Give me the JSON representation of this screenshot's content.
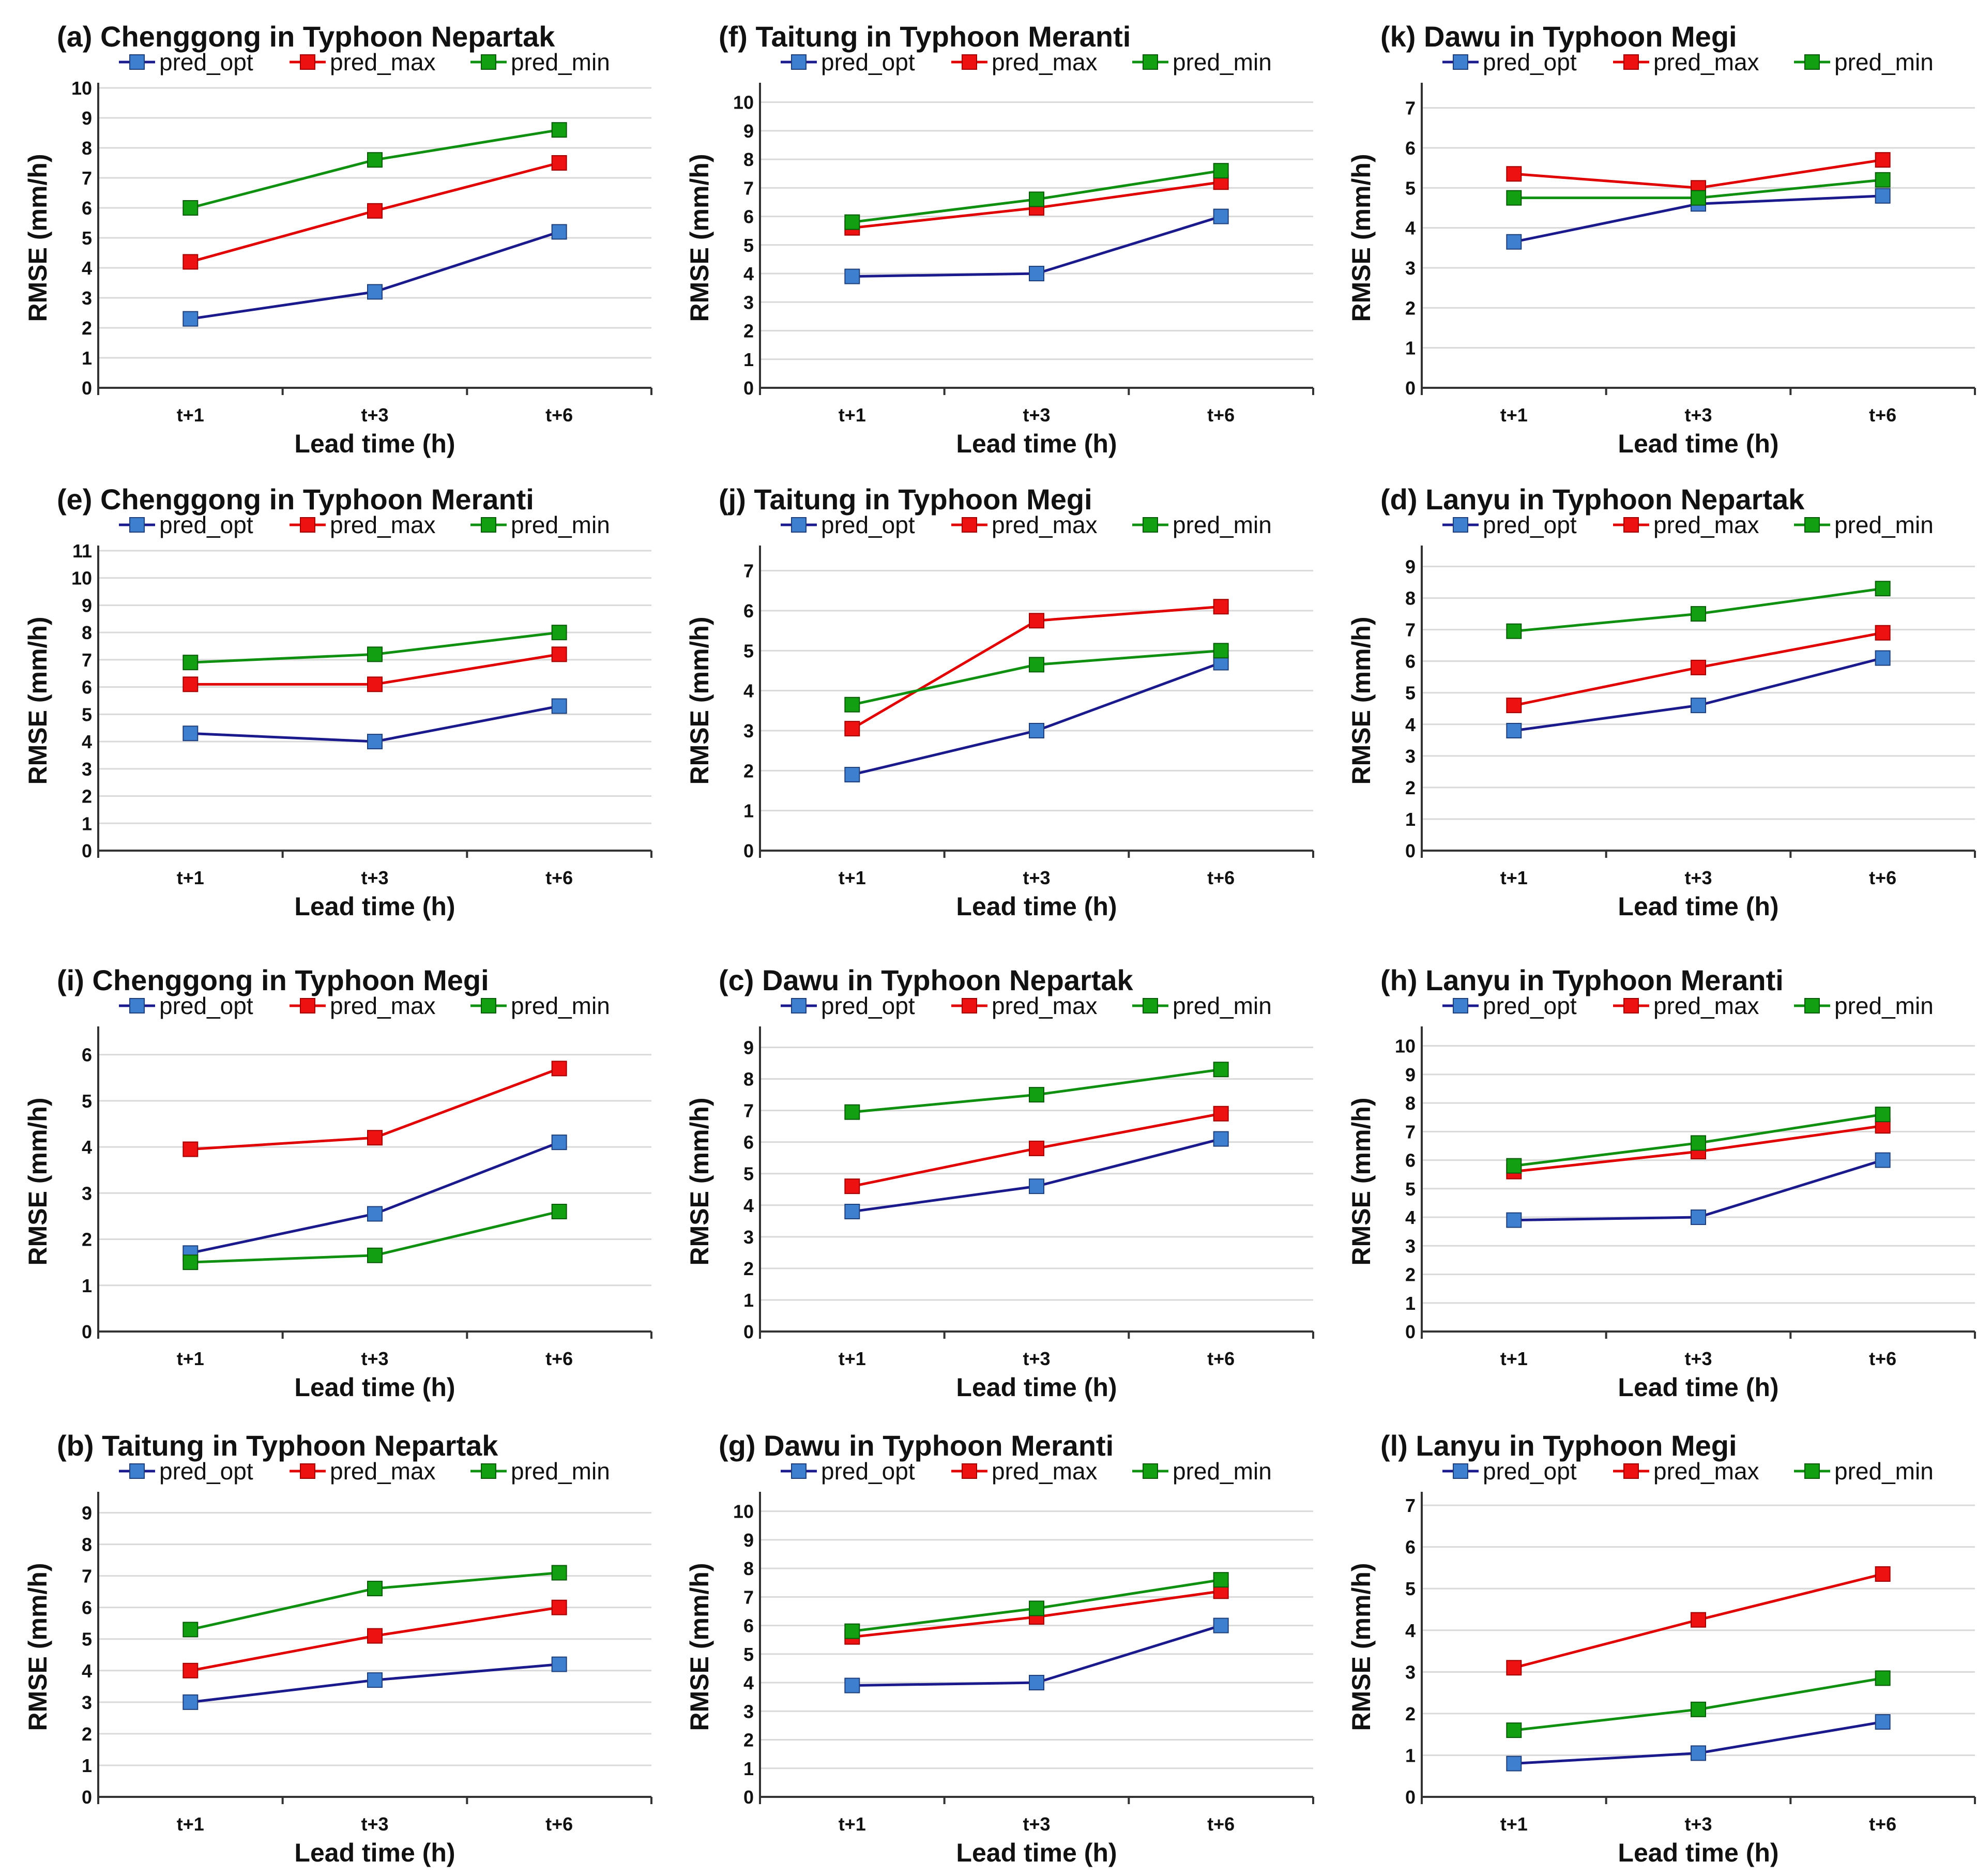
{
  "series_meta": [
    {
      "name": "pred_opt",
      "line_color": "#1a1a8c",
      "marker_color": "#3f7fd0",
      "marker_stroke": "#1f3f7a"
    },
    {
      "name": "pred_max",
      "line_color": "#e00000",
      "marker_color": "#ee1111",
      "marker_stroke": "#a00000"
    },
    {
      "name": "pred_min",
      "line_color": "#109010",
      "marker_color": "#12a012",
      "marker_stroke": "#0a5a0a"
    }
  ],
  "chart_data": [
    {
      "id": "a",
      "type": "line",
      "title": "(a) Chenggong in Typhoon Nepartak",
      "xlabel": "Lead time (h)",
      "ylabel": "RMSE (mm/h)",
      "categories": [
        "t+1",
        "t+3",
        "t+6"
      ],
      "ylim": [
        0,
        10
      ],
      "yticks": [
        0,
        1,
        2,
        3,
        4,
        5,
        6,
        7,
        8,
        9,
        10
      ],
      "legend": "top",
      "series": [
        {
          "name": "pred_opt",
          "values": [
            2.3,
            3.2,
            5.2
          ]
        },
        {
          "name": "pred_max",
          "values": [
            4.2,
            5.9,
            7.5
          ]
        },
        {
          "name": "pred_min",
          "values": [
            6.0,
            7.6,
            8.6
          ]
        }
      ]
    },
    {
      "id": "e",
      "type": "line",
      "title": "(e) Chenggong in Typhoon Meranti",
      "xlabel": "Lead time (h)",
      "ylabel": "RMSE (mm/h)",
      "categories": [
        "t+1",
        "t+3",
        "t+6"
      ],
      "ylim": [
        0,
        11
      ],
      "yticks": [
        0,
        1,
        2,
        3,
        4,
        5,
        6,
        7,
        8,
        9,
        10,
        11
      ],
      "legend": "top",
      "series": [
        {
          "name": "pred_opt",
          "values": [
            4.3,
            4.0,
            5.3
          ]
        },
        {
          "name": "pred_max",
          "values": [
            6.1,
            6.1,
            7.2
          ]
        },
        {
          "name": "pred_min",
          "values": [
            6.9,
            7.2,
            8.0
          ]
        }
      ]
    },
    {
      "id": "i",
      "type": "line",
      "title": "(i) Chenggong in Typhoon Megi",
      "xlabel": "Lead time (h)",
      "ylabel": "RMSE (mm/h)",
      "categories": [
        "t+1",
        "t+3",
        "t+6"
      ],
      "ylim": [
        0,
        6.5
      ],
      "yticks": [
        0,
        1,
        2,
        3,
        4,
        5,
        6
      ],
      "legend": "top",
      "series": [
        {
          "name": "pred_opt",
          "values": [
            1.7,
            2.55,
            4.1
          ]
        },
        {
          "name": "pred_max",
          "values": [
            3.95,
            4.2,
            5.7
          ]
        },
        {
          "name": "pred_min",
          "values": [
            1.5,
            1.65,
            2.6
          ]
        }
      ]
    },
    {
      "id": "b",
      "type": "line",
      "title": "(b) Taitung in Typhoon Nepartak",
      "xlabel": "Lead time (h)",
      "ylabel": "RMSE (mm/h)",
      "categories": [
        "t+1",
        "t+3",
        "t+6"
      ],
      "ylim": [
        0,
        9.5
      ],
      "yticks": [
        0,
        1,
        2,
        3,
        4,
        5,
        6,
        7,
        8,
        9
      ],
      "legend": "top",
      "series": [
        {
          "name": "pred_opt",
          "values": [
            3.0,
            3.7,
            4.2
          ]
        },
        {
          "name": "pred_max",
          "values": [
            4.0,
            5.1,
            6.0
          ]
        },
        {
          "name": "pred_min",
          "values": [
            5.3,
            6.6,
            7.1
          ]
        }
      ]
    },
    {
      "id": "f",
      "type": "line",
      "title": "(f) Taitung in Typhoon Meranti",
      "xlabel": "Lead time (h)",
      "ylabel": "RMSE (mm/h)",
      "categories": [
        "t+1",
        "t+3",
        "t+6"
      ],
      "ylim": [
        0,
        10.5
      ],
      "yticks": [
        0,
        1,
        2,
        3,
        4,
        5,
        6,
        7,
        8,
        9,
        10
      ],
      "legend": "top",
      "series": [
        {
          "name": "pred_opt",
          "values": [
            3.9,
            4.0,
            6.0
          ]
        },
        {
          "name": "pred_max",
          "values": [
            5.6,
            6.3,
            7.2
          ]
        },
        {
          "name": "pred_min",
          "values": [
            5.8,
            6.6,
            7.6
          ]
        }
      ]
    },
    {
      "id": "j",
      "type": "line",
      "title": "(j) Taitung in Typhoon Megi",
      "xlabel": "Lead time (h)",
      "ylabel": "RMSE (mm/h)",
      "categories": [
        "t+1",
        "t+3",
        "t+6"
      ],
      "ylim": [
        0,
        7.5
      ],
      "yticks": [
        0,
        1,
        2,
        3,
        4,
        5,
        6,
        7
      ],
      "legend": "top",
      "series": [
        {
          "name": "pred_opt",
          "values": [
            1.9,
            3.0,
            4.7
          ]
        },
        {
          "name": "pred_max",
          "values": [
            3.05,
            5.75,
            6.1
          ]
        },
        {
          "name": "pred_min",
          "values": [
            3.65,
            4.65,
            5.0
          ]
        }
      ]
    },
    {
      "id": "c",
      "type": "line",
      "title": "(c) Dawu in Typhoon Nepartak",
      "xlabel": "Lead time (h)",
      "ylabel": "RMSE (mm/h)",
      "categories": [
        "t+1",
        "t+3",
        "t+6"
      ],
      "ylim": [
        0,
        9.5
      ],
      "yticks": [
        0,
        1,
        2,
        3,
        4,
        5,
        6,
        7,
        8,
        9
      ],
      "legend": "top",
      "series": [
        {
          "name": "pred_opt",
          "values": [
            3.8,
            4.6,
            6.1
          ]
        },
        {
          "name": "pred_max",
          "values": [
            4.6,
            5.8,
            6.9
          ]
        },
        {
          "name": "pred_min",
          "values": [
            6.95,
            7.5,
            8.3
          ]
        }
      ]
    },
    {
      "id": "g",
      "type": "line",
      "title": "(g) Dawu in Typhoon Meranti",
      "xlabel": "Lead time (h)",
      "ylabel": "RMSE (mm/h)",
      "categories": [
        "t+1",
        "t+3",
        "t+6"
      ],
      "ylim": [
        0,
        10.5
      ],
      "yticks": [
        0,
        1,
        2,
        3,
        4,
        5,
        6,
        7,
        8,
        9,
        10
      ],
      "legend": "top",
      "series": [
        {
          "name": "pred_opt",
          "values": [
            3.9,
            4.0,
            6.0
          ]
        },
        {
          "name": "pred_max",
          "values": [
            5.6,
            6.3,
            7.2
          ]
        },
        {
          "name": "pred_min",
          "values": [
            5.8,
            6.6,
            7.6
          ]
        }
      ]
    },
    {
      "id": "k",
      "type": "line",
      "title": "(k) Dawu in Typhoon Megi",
      "xlabel": "Lead time (h)",
      "ylabel": "RMSE (mm/h)",
      "categories": [
        "t+1",
        "t+3",
        "t+6"
      ],
      "ylim": [
        0,
        7.5
      ],
      "yticks": [
        0,
        1,
        2,
        3,
        4,
        5,
        6,
        7
      ],
      "legend": "top",
      "series": [
        {
          "name": "pred_opt",
          "values": [
            3.65,
            4.6,
            4.8
          ]
        },
        {
          "name": "pred_max",
          "values": [
            5.35,
            5.0,
            5.7
          ]
        },
        {
          "name": "pred_min",
          "values": [
            4.75,
            4.75,
            5.2
          ]
        }
      ]
    },
    {
      "id": "d",
      "type": "line",
      "title": "(d) Lanyu in Typhoon Nepartak",
      "xlabel": "Lead time (h)",
      "ylabel": "RMSE (mm/h)",
      "categories": [
        "t+1",
        "t+3",
        "t+6"
      ],
      "ylim": [
        0,
        9.5
      ],
      "yticks": [
        0,
        1,
        2,
        3,
        4,
        5,
        6,
        7,
        8,
        9
      ],
      "legend": "top",
      "series": [
        {
          "name": "pred_opt",
          "values": [
            3.8,
            4.6,
            6.1
          ]
        },
        {
          "name": "pred_max",
          "values": [
            4.6,
            5.8,
            6.9
          ]
        },
        {
          "name": "pred_min",
          "values": [
            6.95,
            7.5,
            8.3
          ]
        }
      ]
    },
    {
      "id": "h",
      "type": "line",
      "title": "(h) Lanyu in Typhoon Meranti",
      "xlabel": "Lead time (h)",
      "ylabel": "RMSE (mm/h)",
      "categories": [
        "t+1",
        "t+3",
        "t+6"
      ],
      "ylim": [
        0,
        10.5
      ],
      "yticks": [
        0,
        1,
        2,
        3,
        4,
        5,
        6,
        7,
        8,
        9,
        10
      ],
      "legend": "top",
      "series": [
        {
          "name": "pred_opt",
          "values": [
            3.9,
            4.0,
            6.0
          ]
        },
        {
          "name": "pred_max",
          "values": [
            5.6,
            6.3,
            7.2
          ]
        },
        {
          "name": "pred_min",
          "values": [
            5.8,
            6.6,
            7.6
          ]
        }
      ]
    },
    {
      "id": "l",
      "type": "line",
      "title": "(l) Lanyu in Typhoon Megi",
      "xlabel": "Lead time (h)",
      "ylabel": "RMSE (mm/h)",
      "categories": [
        "t+1",
        "t+3",
        "t+6"
      ],
      "ylim": [
        0,
        7.2
      ],
      "yticks": [
        0,
        1,
        2,
        3,
        4,
        5,
        6,
        7
      ],
      "legend": "top",
      "series": [
        {
          "name": "pred_opt",
          "values": [
            0.8,
            1.05,
            1.8
          ]
        },
        {
          "name": "pred_max",
          "values": [
            3.1,
            4.25,
            5.35
          ]
        },
        {
          "name": "pred_min",
          "values": [
            1.6,
            2.1,
            2.85
          ]
        }
      ]
    }
  ]
}
